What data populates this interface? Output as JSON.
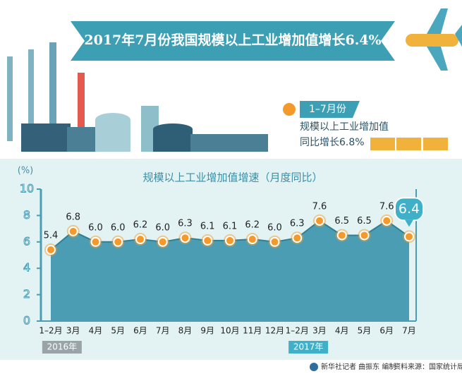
{
  "header": {
    "title": "2017年7月份我国规模以上工业增加值增长6.4%"
  },
  "side_note": {
    "period": "1–7月份",
    "line1": "规模以上工业增加值",
    "line2": "同比增长6.8%"
  },
  "footer": {
    "credit": "新华社记者 曲振东 编制",
    "source": "资料来源：国家统计局"
  },
  "chart_data": {
    "type": "area",
    "title": "规模以上工业增加值增速（月度同比）",
    "y_label": "(%)",
    "categories": [
      "1–2月",
      "3月",
      "4月",
      "5月",
      "6月",
      "7月",
      "8月",
      "9月",
      "10月",
      "11月",
      "12月",
      "1–2月",
      "3月",
      "4月",
      "5月",
      "6月",
      "7月"
    ],
    "values": [
      5.4,
      6.8,
      6.0,
      6.0,
      6.2,
      6.0,
      6.3,
      6.1,
      6.1,
      6.2,
      6.0,
      6.3,
      7.6,
      6.5,
      6.5,
      7.6,
      6.4
    ],
    "value_labels": [
      "5.4",
      "6.8",
      "6.0",
      "6.0",
      "6.2",
      "6.0",
      "6.3",
      "6.1",
      "6.1",
      "6.2",
      "6.0",
      "6.3",
      "7.6",
      "6.5",
      "6.5",
      "7.6",
      "6.4"
    ],
    "year_labels": [
      "2016年",
      "2017年"
    ],
    "color": "#4a9db3",
    "marker_color": "#f39a2b",
    "ylim": [
      0,
      10
    ],
    "yticks": [
      0,
      2,
      4,
      6,
      8,
      10
    ]
  }
}
